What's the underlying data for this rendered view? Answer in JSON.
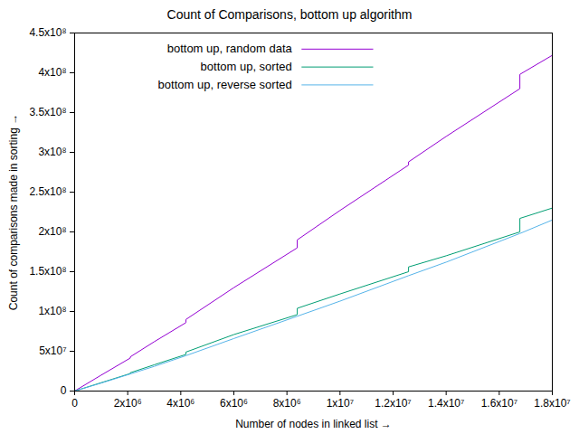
{
  "chart_data": {
    "type": "line",
    "title": "Count of Comparisons, bottom up algorithm",
    "x_label": "Number of nodes in linked list",
    "y_label": "Count of comparisons made in sorting",
    "x": [
      0,
      1000000,
      2097151,
      2097152,
      3000000,
      4194303,
      4194304,
      6000000,
      8388607,
      8388608,
      10000000,
      12582911,
      12582912,
      14000000,
      16777215,
      16777216,
      18000000
    ],
    "series": [
      {
        "name": "bottom up, random data",
        "color": "#9400d3",
        "values": [
          0,
          20000000,
          41500000,
          43000000,
          62000000,
          86000000,
          90000000,
          130000000,
          180000000,
          190000000,
          227000000,
          284000000,
          288000000,
          320000000,
          380000000,
          398000000,
          422000000
        ]
      },
      {
        "name": "bottom up, sorted",
        "color": "#009e73",
        "values": [
          0,
          10500000,
          22000000,
          23000000,
          33000000,
          46000000,
          49000000,
          71000000,
          96000000,
          104000000,
          122000000,
          150000000,
          156000000,
          170000000,
          200000000,
          217000000,
          230000000
        ]
      },
      {
        "name": "bottom up, reverse sorted",
        "color": "#56b4e9",
        "values": [
          0,
          10000000,
          21500000,
          21500000,
          31000000,
          44500000,
          44500000,
          66000000,
          94000000,
          94000000,
          113000000,
          145000000,
          145000000,
          162000000,
          198000000,
          198000000,
          215000000
        ]
      }
    ],
    "xlim": [
      0,
      18000000
    ],
    "ylim": [
      0,
      450000000
    ],
    "xticks": [
      0,
      {
        "value": 2000000,
        "label": "2x10⁶"
      },
      {
        "value": 4000000,
        "label": "4x10⁶"
      },
      {
        "value": 6000000,
        "label": "6x10⁶"
      },
      {
        "value": 8000000,
        "label": "8x10⁶"
      },
      {
        "value": 10000000,
        "label": "1x10⁷"
      },
      {
        "value": 12000000,
        "label": "1.2x10⁷"
      },
      {
        "value": 14000000,
        "label": "1.4x10⁷"
      },
      {
        "value": 16000000,
        "label": "1.6x10⁷"
      },
      {
        "value": 18000000,
        "label": "1.8x10⁷"
      }
    ],
    "yticks": [
      0,
      {
        "value": 50000000,
        "label": "5x10⁷"
      },
      {
        "value": 100000000,
        "label": "1x10⁸"
      },
      {
        "value": 150000000,
        "label": "1.5x10⁸"
      },
      {
        "value": 200000000,
        "label": "2x10⁸"
      },
      {
        "value": 250000000,
        "label": "2.5x10⁸"
      },
      {
        "value": 300000000,
        "label": "3x10⁸"
      },
      {
        "value": 350000000,
        "label": "3.5x10⁸"
      },
      {
        "value": 400000000,
        "label": "4x10⁸"
      },
      {
        "value": 450000000,
        "label": "4.5x10⁸"
      }
    ],
    "grid": false,
    "legend": "top"
  }
}
